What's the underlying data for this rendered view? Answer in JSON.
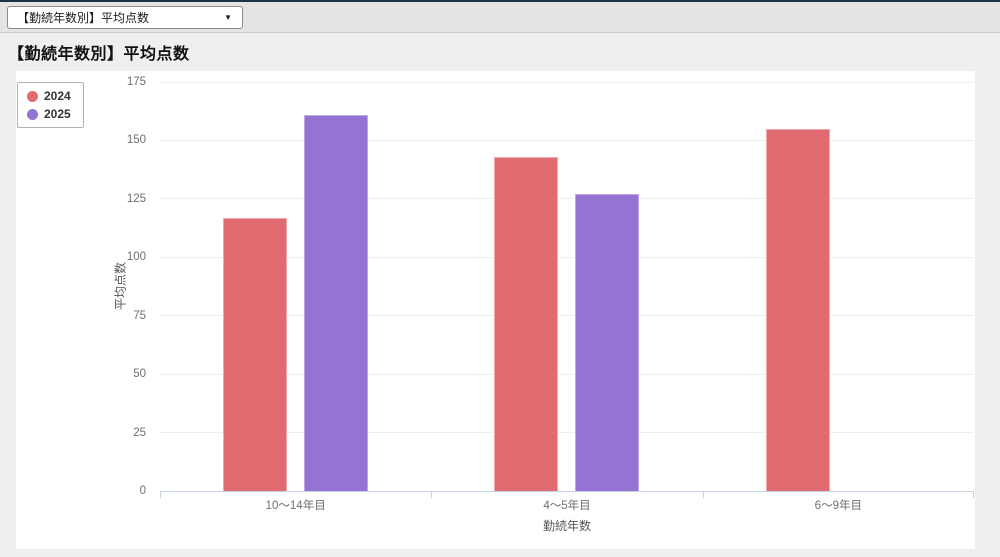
{
  "toolbar": {
    "selector": {
      "value": "【勤続年数別】平均点数"
    }
  },
  "page": {
    "title": "【勤続年数別】平均点数"
  },
  "chart_data": {
    "type": "bar",
    "title": "【勤続年数別】平均点数",
    "categories": [
      "10〜14年目",
      "4〜5年目",
      "6〜9年目"
    ],
    "series": [
      {
        "name": "2024",
        "color": "#e06c72",
        "border_color": "#efa9ad",
        "values": [
          117,
          143,
          155
        ]
      },
      {
        "name": "2025",
        "color": "#9473d2",
        "border_color": "#bfa8e6",
        "values": [
          161,
          127,
          null
        ]
      }
    ],
    "xlabel": "勤続年数",
    "ylabel": "平均点数",
    "ylim": [
      0,
      175
    ],
    "yticks": [
      0,
      25,
      50,
      75,
      100,
      125,
      150,
      175
    ],
    "grid": true,
    "legend_position": "top-left",
    "colors": {
      "grid": "#ededed",
      "axis": "#c9d2e2",
      "tick_label": "#6e6e6e"
    }
  }
}
